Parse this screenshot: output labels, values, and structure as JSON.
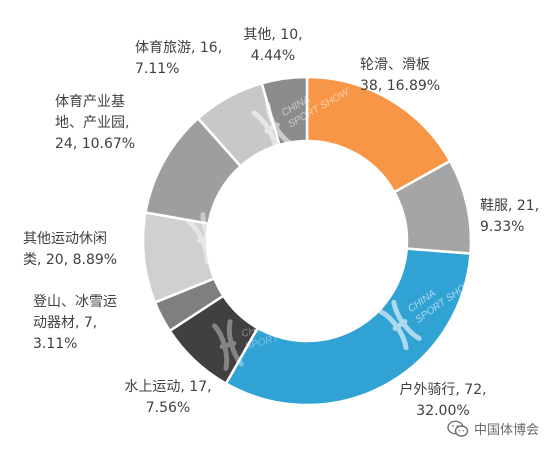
{
  "chart_data": {
    "type": "pie",
    "donut": true,
    "unit_note": "",
    "slices": [
      {
        "name": "轮滑、滑板",
        "lines": [
          "轮滑、滑板",
          "38, 16.89%"
        ],
        "value": 38,
        "percent": 16.89,
        "color": "#F79646"
      },
      {
        "name": "鞋服",
        "lines": [
          "鞋服, 21,",
          "9.33%"
        ],
        "value": 21,
        "percent": 9.33,
        "color": "#A5A5A5"
      },
      {
        "name": "户外骑行",
        "lines": [
          "户外骑行, 72,",
          "32.00%"
        ],
        "value": 72,
        "percent": 32.0,
        "color": "#31A2D4"
      },
      {
        "name": "水上运动",
        "lines": [
          "水上运动, 17,",
          "7.56%"
        ],
        "value": 17,
        "percent": 7.56,
        "color": "#404040"
      },
      {
        "name": "登山、冰雪运动器材",
        "lines": [
          "登山、冰雪运",
          "动器材, 7,",
          "3.11%"
        ],
        "value": 7,
        "percent": 3.11,
        "color": "#7F7F7F"
      },
      {
        "name": "其他运动休闲类",
        "lines": [
          "其他运动休闲",
          "类, 20, 8.89%"
        ],
        "value": 20,
        "percent": 8.89,
        "color": "#D0D0D0"
      },
      {
        "name": "体育产业基地、产业园",
        "lines": [
          "体育产业基",
          "地、产业园,",
          "24, 10.67%"
        ],
        "value": 24,
        "percent": 10.67,
        "color": "#9E9E9E"
      },
      {
        "name": "体育旅游",
        "lines": [
          "体育旅游, 16,",
          "7.11%"
        ],
        "value": 16,
        "percent": 7.11,
        "color": "#C8C8C8"
      },
      {
        "name": "其他",
        "lines": [
          "其他, 10,",
          "4.44%"
        ],
        "value": 10,
        "percent": 4.44,
        "color": "#8C8C8C"
      }
    ]
  },
  "watermark": {
    "text_line1": "CHINA",
    "text_line2": "SPORT SHOW",
    "icon": "china-sport-show-logo-icon"
  },
  "footer": {
    "icon": "wechat-icon",
    "account": "中国体博会"
  }
}
